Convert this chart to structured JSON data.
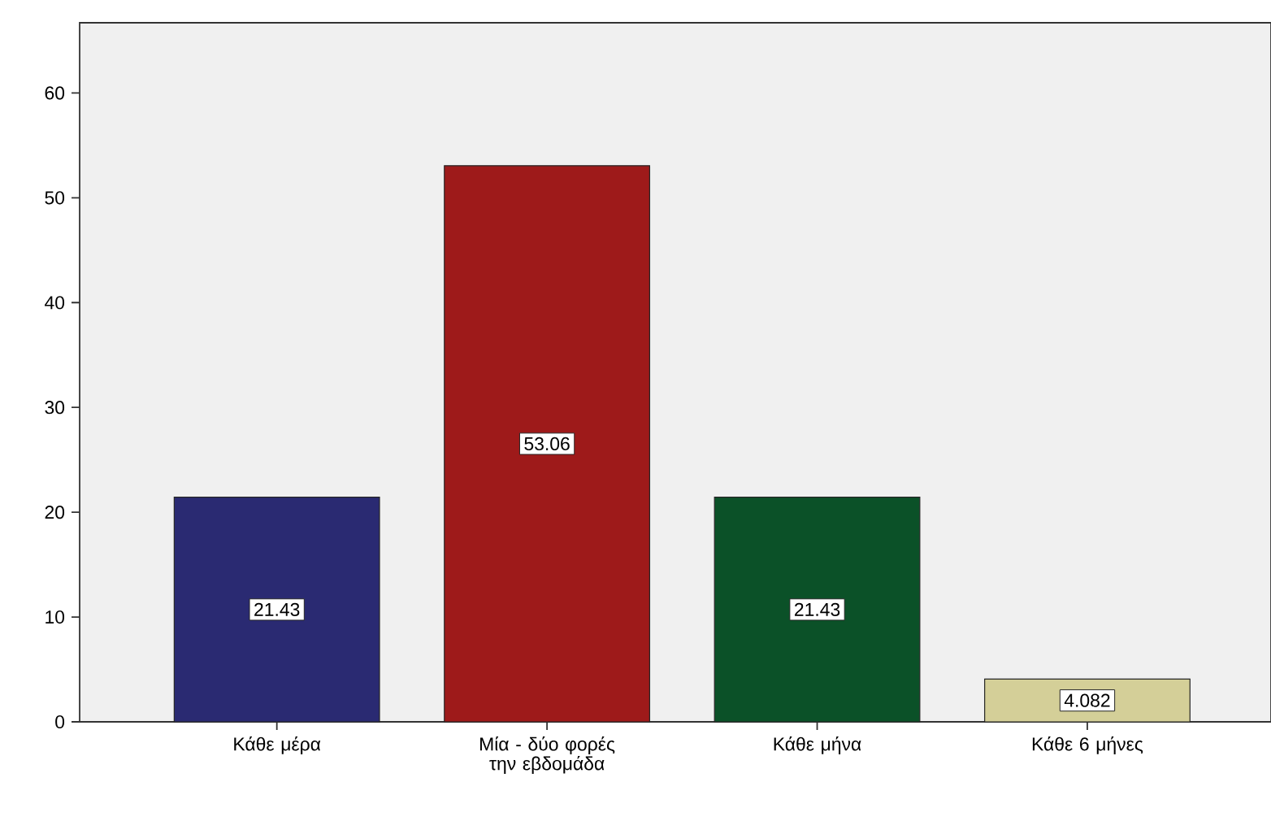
{
  "chart_data": {
    "type": "bar",
    "categories": [
      "Κάθε μέρα",
      "Μία - δύο φορές την εβδομάδα",
      "Κάθε μήνα",
      "Κάθε 6 μήνες"
    ],
    "values": [
      21.43,
      53.06,
      21.43,
      4.082
    ],
    "colors": [
      "#2a2a72",
      "#9e1a1a",
      "#0b5128",
      "#d4cf98"
    ],
    "ylim": [
      0,
      66.7
    ],
    "yticks": [
      0,
      10,
      20,
      30,
      40,
      50,
      60
    ],
    "data_labels": true,
    "grid": false
  }
}
